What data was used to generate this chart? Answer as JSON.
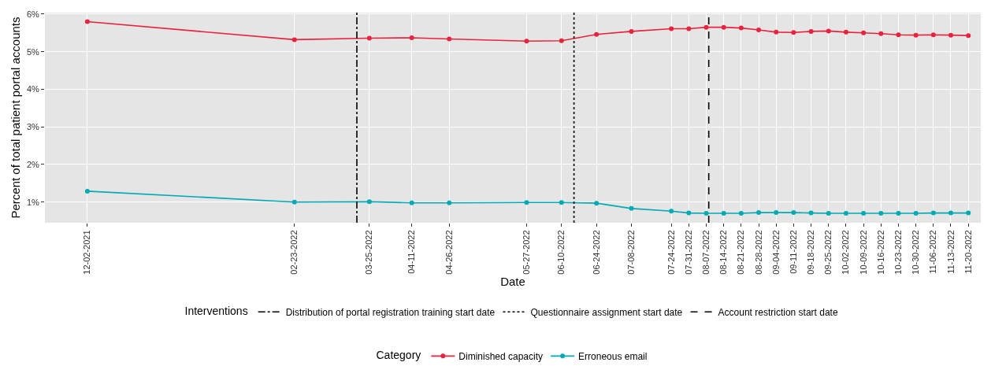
{
  "chart_data": {
    "type": "line",
    "xlabel": "Date",
    "ylabel": "Percent of total patient portal accounts",
    "legend_title": "Category",
    "annotations": [
      "Interventions"
    ],
    "x": [
      "2021-12-02",
      "2022-02-23",
      "2022-03-25",
      "2022-04-11",
      "2022-04-26",
      "2022-05-27",
      "2022-06-10",
      "2022-06-24",
      "2022-07-08",
      "2022-07-24",
      "2022-07-31",
      "2022-08-07",
      "2022-08-14",
      "2022-08-21",
      "2022-08-28",
      "2022-09-04",
      "2022-09-11",
      "2022-09-18",
      "2022-09-25",
      "2022-10-02",
      "2022-10-09",
      "2022-10-16",
      "2022-10-23",
      "2022-10-30",
      "2022-11-06",
      "2022-11-13",
      "2022-11-20"
    ],
    "series": [
      {
        "name": "Diminished capacity",
        "color": "#e8233f",
        "values": [
          5.8,
          5.32,
          5.36,
          5.37,
          5.34,
          5.28,
          5.29,
          5.46,
          5.54,
          5.61,
          5.61,
          5.65,
          5.65,
          5.63,
          5.58,
          5.52,
          5.51,
          5.54,
          5.55,
          5.52,
          5.5,
          5.48,
          5.45,
          5.44,
          5.45,
          5.44,
          5.43
        ]
      },
      {
        "name": "Erroneous email",
        "color": "#00aab5",
        "values": [
          1.29,
          1.0,
          1.01,
          0.98,
          0.98,
          0.99,
          0.99,
          0.97,
          0.83,
          0.76,
          0.71,
          0.7,
          0.7,
          0.7,
          0.72,
          0.72,
          0.72,
          0.71,
          0.7,
          0.7,
          0.7,
          0.7,
          0.7,
          0.7,
          0.71,
          0.71,
          0.71
        ]
      }
    ],
    "ref_lines": [
      {
        "axis": "x",
        "value": "2022-03-20",
        "label": "Distribution of portal registration training start date",
        "color": "#000000",
        "line_style": "dashdot"
      },
      {
        "axis": "x",
        "value": "2022-06-15",
        "label": "Questionnaire assignment start date",
        "color": "#000000",
        "line_style": "dotted"
      },
      {
        "axis": "x",
        "value": "2022-08-08",
        "label": "Account restriction start date",
        "color": "#000000",
        "line_style": "dashed"
      }
    ],
    "xlim": [
      "2021-11-15",
      "2022-11-25"
    ],
    "xticks": [
      {
        "value": "2021-12-02",
        "label": "12-02-2021"
      },
      {
        "value": "2022-02-23",
        "label": "02-23-2022"
      },
      {
        "value": "2022-03-25",
        "label": "03-25-2022"
      },
      {
        "value": "2022-04-11",
        "label": "04-11-2022"
      },
      {
        "value": "2022-04-26",
        "label": "04-26-2022"
      },
      {
        "value": "2022-05-27",
        "label": "05-27-2022"
      },
      {
        "value": "2022-06-10",
        "label": "06-10-2022"
      },
      {
        "value": "2022-06-24",
        "label": "06-24-2022"
      },
      {
        "value": "2022-07-08",
        "label": "07-08-2022"
      },
      {
        "value": "2022-07-24",
        "label": "07-24-2022"
      },
      {
        "value": "2022-07-31",
        "label": "07-31-2022"
      },
      {
        "value": "2022-08-07",
        "label": "08-07-2022"
      },
      {
        "value": "2022-08-14",
        "label": "08-14-2022"
      },
      {
        "value": "2022-08-21",
        "label": "08-21-2022"
      },
      {
        "value": "2022-08-28",
        "label": "08-28-2022"
      },
      {
        "value": "2022-09-04",
        "label": "09-04-2022"
      },
      {
        "value": "2022-09-11",
        "label": "09-11-2022"
      },
      {
        "value": "2022-09-18",
        "label": "09-18-2022"
      },
      {
        "value": "2022-09-25",
        "label": "09-25-2022"
      },
      {
        "value": "2022-10-02",
        "label": "10-02-2022"
      },
      {
        "value": "2022-10-09",
        "label": "10-09-2022"
      },
      {
        "value": "2022-10-16",
        "label": "10-16-2022"
      },
      {
        "value": "2022-10-23",
        "label": "10-23-2022"
      },
      {
        "value": "2022-10-30",
        "label": "10-30-2022"
      },
      {
        "value": "2022-11-06",
        "label": "11-06-2022"
      },
      {
        "value": "2022-11-13",
        "label": "11-13-2022"
      },
      {
        "value": "2022-11-20",
        "label": "11-20-2022"
      }
    ],
    "ylim": [
      0.45,
      6.04
    ],
    "yticks": [
      {
        "value": 1,
        "label": "1%"
      },
      {
        "value": 2,
        "label": "2%"
      },
      {
        "value": 3,
        "label": "3%"
      },
      {
        "value": 4,
        "label": "4%"
      },
      {
        "value": 5,
        "label": "5%"
      },
      {
        "value": 6,
        "label": "6%"
      }
    ],
    "grid": true,
    "legend": "bottom",
    "marker": "circle",
    "line_style": "solid"
  }
}
